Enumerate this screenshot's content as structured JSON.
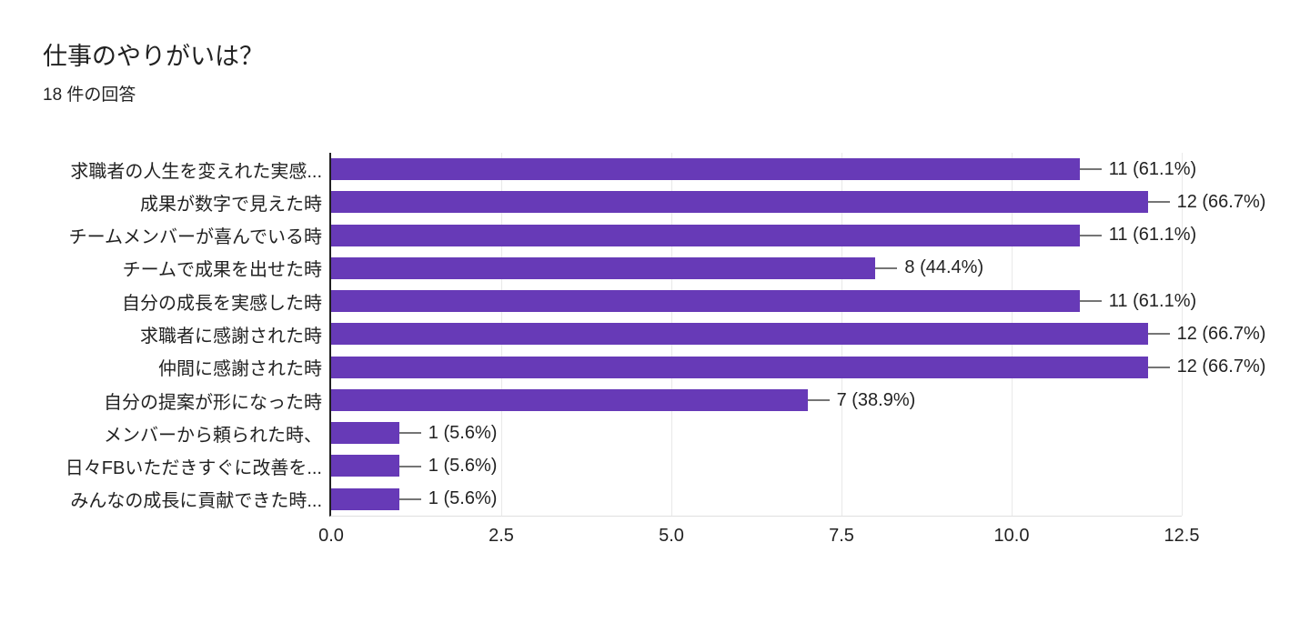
{
  "chart_data": {
    "type": "bar",
    "orientation": "horizontal",
    "title": "仕事のやりがいは？",
    "subtitle": "18 件の回答",
    "total_responses": 18,
    "categories": [
      "求職者の人生を変えれた実感...",
      "成果が数字で見えた時",
      "チームメンバーが喜んでいる時",
      "チームで成果を出せた時",
      "自分の成長を実感した時",
      "求職者に感謝された時",
      "仲間に感謝された時",
      "自分の提案が形になった時",
      "メンバーから頼られた時、",
      "日々FBいただきすぐに改善を...",
      "みんなの成長に貢献できた時..."
    ],
    "values": [
      11,
      12,
      11,
      8,
      11,
      12,
      12,
      7,
      1,
      1,
      1
    ],
    "value_labels": [
      "11 (61.1%)",
      "12 (66.7%)",
      "11 (61.1%)",
      "8 (44.4%)",
      "11 (61.1%)",
      "12 (66.7%)",
      "12 (66.7%)",
      "7 (38.9%)",
      "1 (5.6%)",
      "1 (5.6%)",
      "1 (5.6%)"
    ],
    "xlim": [
      0,
      12.5
    ],
    "xticks": [
      0.0,
      2.5,
      5.0,
      7.5,
      10.0,
      12.5
    ],
    "xtick_labels": [
      "0.0",
      "2.5",
      "5.0",
      "7.5",
      "10.0",
      "12.5"
    ],
    "grid": true,
    "legend": "none",
    "colors": {
      "bar": "#673ab7",
      "axis": "#212121",
      "gridline": "#e9e9e9",
      "plot_bottom_border": "#e0e0e0",
      "connector": "#757575",
      "text": "#000000"
    }
  }
}
